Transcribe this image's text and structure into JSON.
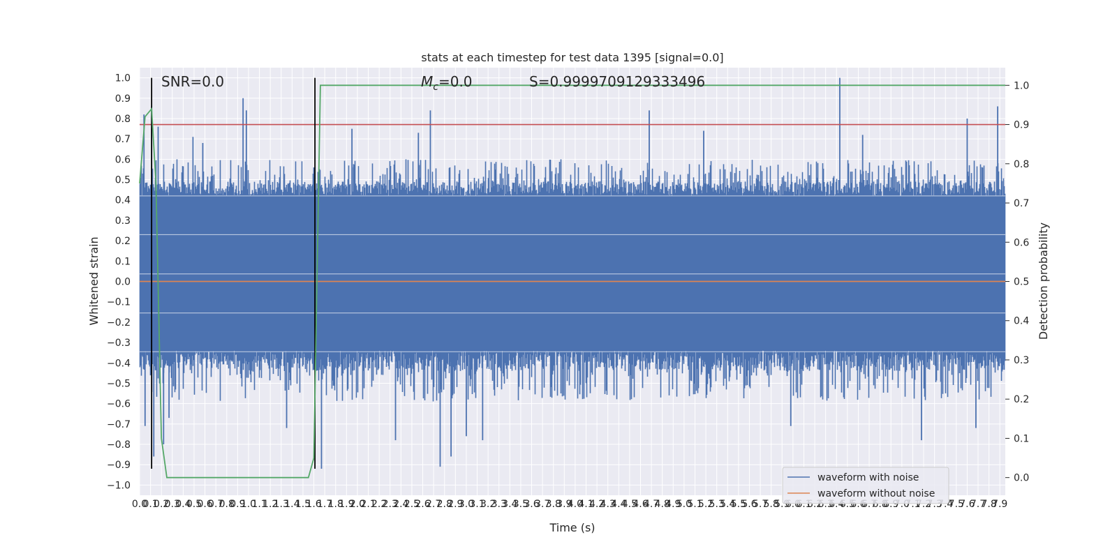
{
  "chart_data": {
    "type": "line",
    "title": "stats at each timestep for test data 1395 [signal=0.0]",
    "xlabel": "Time (s)",
    "ylabel": "Whitened strain",
    "y2label": "Detection probability",
    "xlim": [
      0.0,
      7.95
    ],
    "ylim": [
      -1.05,
      1.05
    ],
    "y2lim": [
      -0.045,
      1.045
    ],
    "x_ticks": [
      0.0,
      0.1,
      0.2,
      0.3,
      0.4,
      0.5,
      0.6,
      0.7,
      0.8,
      0.9,
      1.0,
      1.1,
      1.2,
      1.3,
      1.4,
      1.5,
      1.6,
      1.7,
      1.8,
      1.9,
      2.0,
      2.1,
      2.2,
      2.3,
      2.4,
      2.5,
      2.6,
      2.7,
      2.8,
      2.9,
      3.0,
      3.1,
      3.2,
      3.3,
      3.4,
      3.5,
      3.6,
      3.7,
      3.8,
      3.9,
      4.0,
      4.1,
      4.2,
      4.3,
      4.4,
      4.5,
      4.6,
      4.7,
      4.8,
      4.9,
      5.0,
      5.1,
      5.2,
      5.3,
      5.4,
      5.5,
      5.6,
      5.7,
      5.8,
      5.9,
      6.0,
      6.1,
      6.2,
      6.3,
      6.4,
      6.5,
      6.6,
      6.7,
      6.8,
      6.9,
      7.0,
      7.1,
      7.2,
      7.3,
      7.4,
      7.5,
      7.6,
      7.7,
      7.8,
      7.9
    ],
    "y_ticks": [
      -1.0,
      -0.9,
      -0.8,
      -0.7,
      -0.6,
      -0.5,
      -0.4,
      -0.3,
      -0.2,
      -0.1,
      0.0,
      0.1,
      0.2,
      0.3,
      0.4,
      0.5,
      0.6,
      0.7,
      0.8,
      0.9,
      1.0
    ],
    "y_tick_labels": [
      "−1.0",
      "−0.9",
      "−0.8",
      "−0.7",
      "−0.6",
      "−0.5",
      "−0.4",
      "−0.3",
      "−0.2",
      "−0.1",
      "0.0",
      "0.1",
      "0.2",
      "0.3",
      "0.4",
      "0.5",
      "0.6",
      "0.7",
      "0.8",
      "0.9",
      "1.0"
    ],
    "y2_ticks": [
      0.0,
      0.1,
      0.2,
      0.3,
      0.4,
      0.5,
      0.6,
      0.7,
      0.8,
      0.9,
      1.0
    ],
    "grid": true,
    "legend_position": "bottom-right",
    "annotations": {
      "snr": "SNR=0.0",
      "mc": "=0.0",
      "mc_symbol": "M",
      "mc_subscript": "c",
      "s": "S=0.9999709129333496"
    },
    "series": [
      {
        "name": "waveform with noise",
        "color": "#4c72b0",
        "axis": "left",
        "envelope": {
          "dense_band": [
            -0.34,
            0.42
          ],
          "typical_peak": 0.6,
          "max": 1.0,
          "min": -0.92,
          "spikes": [
            [
              0.04,
              0.82
            ],
            [
              0.05,
              -0.71
            ],
            [
              0.11,
              0.86
            ],
            [
              0.13,
              -0.86
            ],
            [
              0.17,
              0.76
            ],
            [
              0.22,
              -0.8
            ],
            [
              0.27,
              -0.67
            ],
            [
              0.49,
              0.71
            ],
            [
              0.58,
              0.68
            ],
            [
              0.95,
              0.9
            ],
            [
              0.98,
              0.84
            ],
            [
              1.35,
              -0.72
            ],
            [
              1.6,
              0.56
            ],
            [
              1.67,
              -0.92
            ],
            [
              1.95,
              0.75
            ],
            [
              2.35,
              -0.78
            ],
            [
              2.56,
              0.73
            ],
            [
              2.67,
              0.84
            ],
            [
              2.76,
              -0.91
            ],
            [
              2.86,
              -0.86
            ],
            [
              3.0,
              -0.76
            ],
            [
              3.15,
              -0.78
            ],
            [
              4.68,
              0.84
            ],
            [
              5.18,
              0.74
            ],
            [
              5.98,
              -0.71
            ],
            [
              6.43,
              1.0
            ],
            [
              6.64,
              0.72
            ],
            [
              7.18,
              -0.78
            ],
            [
              7.6,
              0.8
            ],
            [
              7.68,
              -0.72
            ],
            [
              7.88,
              0.86
            ]
          ]
        }
      },
      {
        "name": "waveform without noise",
        "color": "#dd8452",
        "axis": "left",
        "x": [
          0.0,
          7.95
        ],
        "y": [
          0.0,
          0.0
        ]
      },
      {
        "name": "",
        "color": "#55a868",
        "axis": "right",
        "x": [
          0.0,
          0.05,
          0.11,
          0.15,
          0.2,
          0.25,
          0.3,
          0.4,
          1.55,
          1.6,
          1.66,
          1.7,
          7.95
        ],
        "y": [
          0.75,
          0.92,
          0.94,
          0.75,
          0.1,
          0.0,
          0.0,
          0.0,
          0.0,
          0.05,
          1.0,
          1.0,
          1.0
        ]
      }
    ],
    "threshold": {
      "axis": "right",
      "value": 0.9,
      "color": "#c44e52"
    },
    "vlines": [
      {
        "x": 0.11,
        "ymin": -0.92,
        "ymax": 1.0
      },
      {
        "x": 1.61,
        "ymin": -0.92,
        "ymax": 1.0
      }
    ]
  }
}
